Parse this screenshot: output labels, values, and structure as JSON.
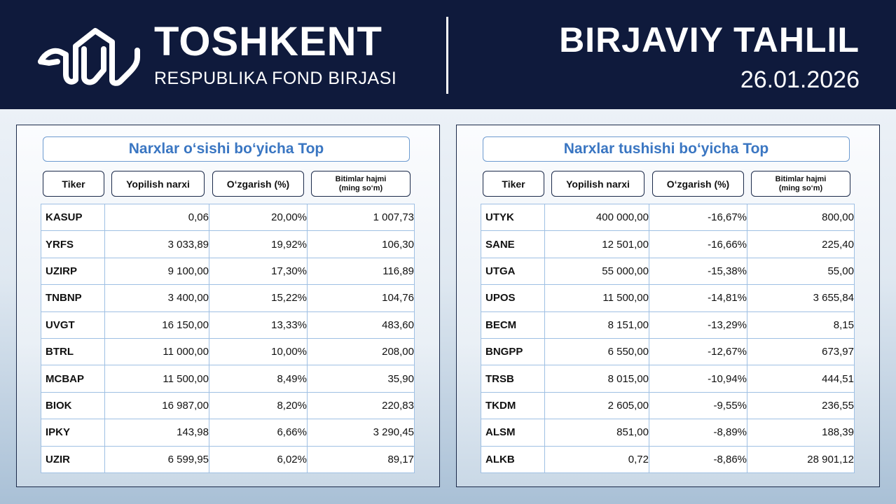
{
  "header": {
    "brand_name": "TOSHKENT",
    "brand_sub": "RESPUBLIKA FOND BIRJASI",
    "report_title": "BIRJAVIY TAHLIL",
    "report_date": "26.01.2026",
    "logo_icon": "toshkent-exchange-logo-icon",
    "background_color": "#0f1a3c"
  },
  "colors": {
    "positive": "#1ea84a",
    "negative": "#e02a2a",
    "title_blue": "#3a76c2"
  },
  "gainers": {
    "title": "Narxlar o‘sishi bo‘yicha Top",
    "headers": [
      "Tiker",
      "Yopilish narxi",
      "O‘zgarish (%)",
      "Bitimlar hajmi",
      "(ming so‘m)"
    ],
    "rows": [
      [
        "KASUP",
        "0,06",
        "20,00%",
        "1 007,73"
      ],
      [
        "YRFS",
        "3 033,89",
        "19,92%",
        "106,30"
      ],
      [
        "UZIRP",
        "9 100,00",
        "17,30%",
        "116,89"
      ],
      [
        "TNBNP",
        "3 400,00",
        "15,22%",
        "104,76"
      ],
      [
        "UVGT",
        "16 150,00",
        "13,33%",
        "483,60"
      ],
      [
        "BTRL",
        "11 000,00",
        "10,00%",
        "208,00"
      ],
      [
        "MCBAP",
        "11 500,00",
        "8,49%",
        "35,90"
      ],
      [
        "BIOK",
        "16 987,00",
        "8,20%",
        "220,83"
      ],
      [
        "IPKY",
        "143,98",
        "6,66%",
        "3 290,45"
      ],
      [
        "UZIR",
        "6 599,95",
        "6,02%",
        "89,17"
      ]
    ]
  },
  "losers": {
    "title": "Narxlar tushishi bo‘yicha Top",
    "headers": [
      "Tiker",
      "Yopilish narxi",
      "O‘zgarish (%)",
      "Bitimlar hajmi",
      "(ming so‘m)"
    ],
    "rows": [
      [
        "UTYK",
        "400 000,00",
        "-16,67%",
        "800,00"
      ],
      [
        "SANE",
        "12 501,00",
        "-16,66%",
        "225,40"
      ],
      [
        "UTGA",
        "55 000,00",
        "-15,38%",
        "55,00"
      ],
      [
        "UPOS",
        "11 500,00",
        "-14,81%",
        "3 655,84"
      ],
      [
        "BECM",
        "8 151,00",
        "-13,29%",
        "8,15"
      ],
      [
        "BNGPP",
        "6 550,00",
        "-12,67%",
        "673,97"
      ],
      [
        "TRSB",
        "8 015,00",
        "-10,94%",
        "444,51"
      ],
      [
        "TKDM",
        "2 605,00",
        "-9,55%",
        "236,55"
      ],
      [
        "ALSM",
        "851,00",
        "-8,89%",
        "188,39"
      ],
      [
        "ALKB",
        "0,72",
        "-8,86%",
        "28 901,12"
      ]
    ]
  }
}
